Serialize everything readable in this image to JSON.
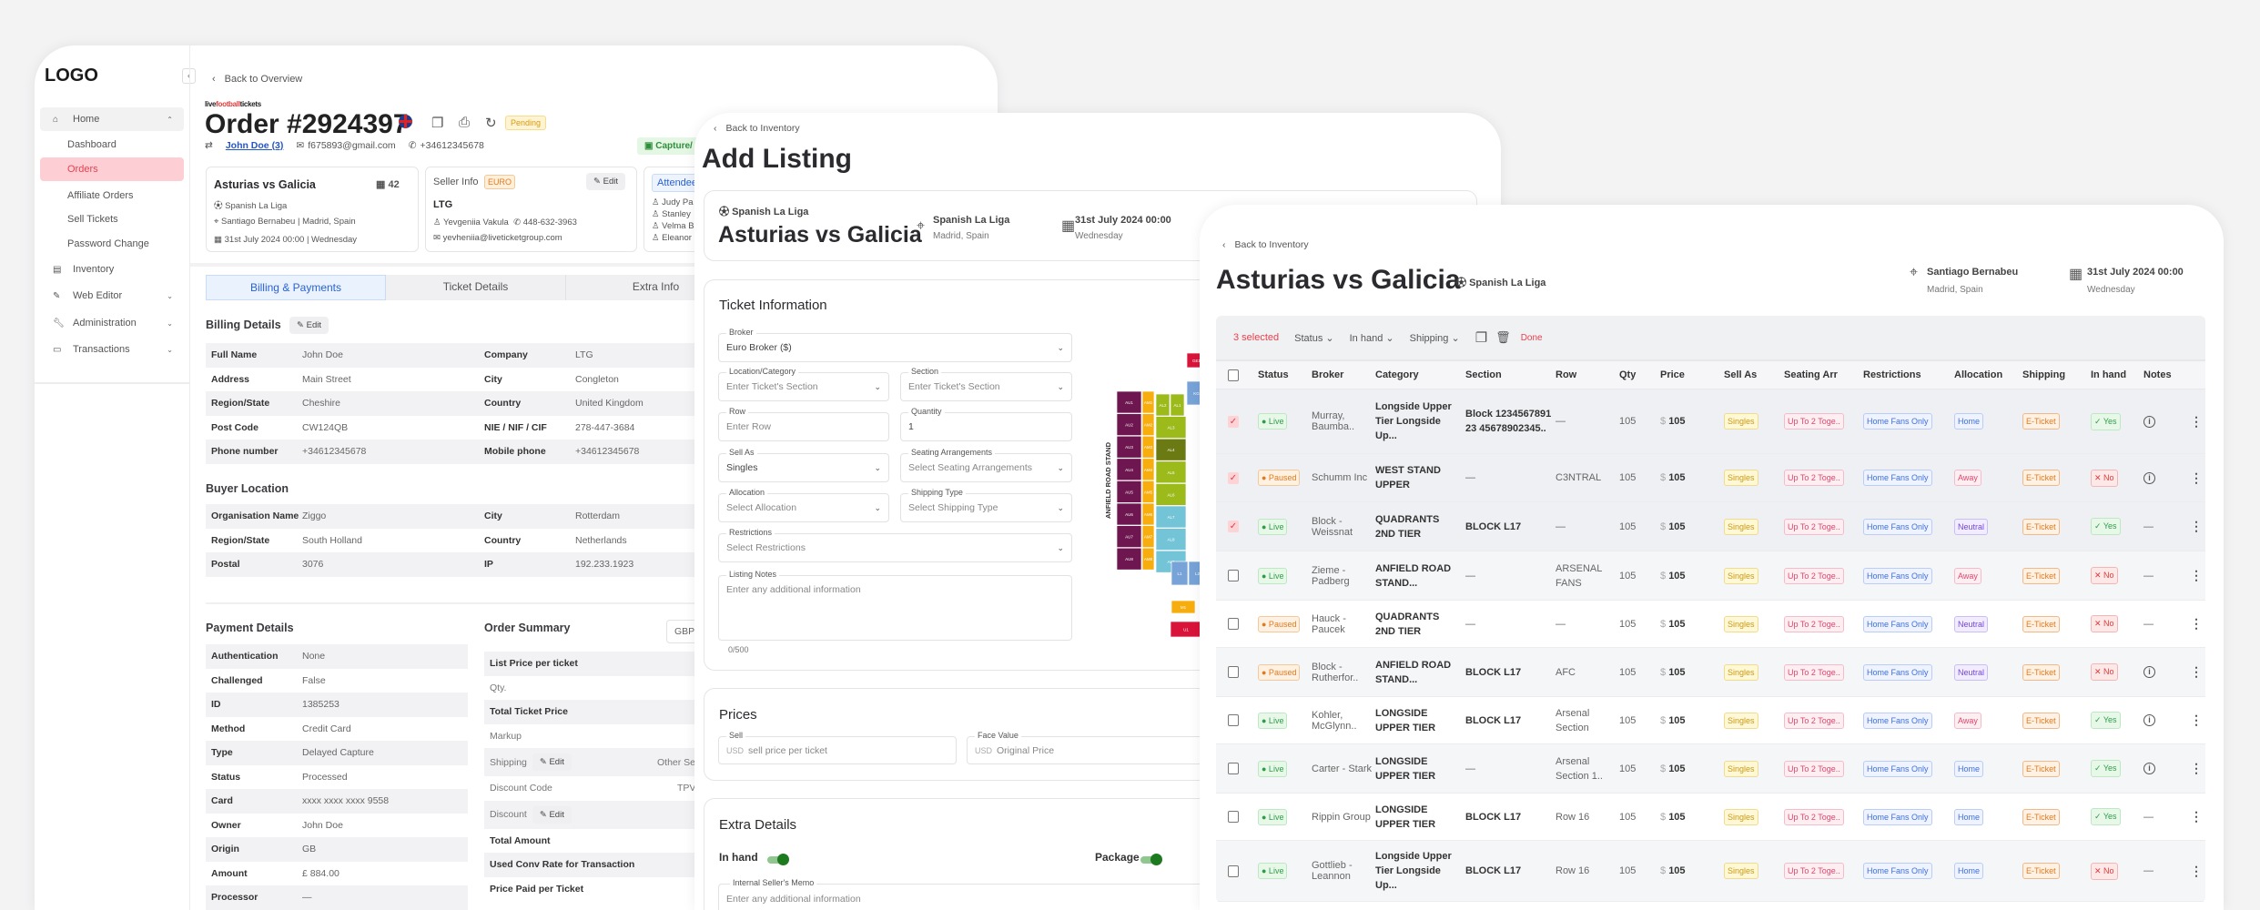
{
  "order_panel": {
    "logo": "LOGO",
    "sidebar": {
      "items": [
        {
          "label": "Home",
          "icon": "home-icon"
        },
        {
          "label": "Dashboard"
        },
        {
          "label": "Orders"
        },
        {
          "label": "Affiliate Orders"
        },
        {
          "label": "Sell Tickets"
        },
        {
          "label": "Password Change"
        },
        {
          "label": "Inventory",
          "icon": "ticket-icon"
        },
        {
          "label": "Web Editor",
          "icon": "pencil-icon"
        },
        {
          "label": "Administration",
          "icon": "wrench-icon"
        },
        {
          "label": "Transactions",
          "icon": "card-icon"
        }
      ]
    },
    "back_label": "Back to Overview",
    "brand": "livefootballtickets",
    "title": "Order #2924397",
    "status_badge": "Pending",
    "customer": "John Doe (3)",
    "email": "f675893@gmail.com",
    "phone": "+34612345678",
    "capture_label": "Capture/",
    "event_card": {
      "title": "Asturias vs Galicia",
      "count": "42",
      "league": "Spanish La Liga",
      "venue": "Santiago Bernabeu | Madrid, Spain",
      "date": "31st July 2024 00:00 | Wednesday"
    },
    "seller_card": {
      "title": "Seller Info",
      "currency": "EURO",
      "edit": "Edit",
      "company": "LTG",
      "contact": "Yevgeniia Vakula",
      "phone": "448-632-3963",
      "email": "yevheniia@liveticketgroup.com"
    },
    "attendees_card": {
      "title": "Attendee",
      "names": [
        "Judy Pa",
        "Stanley",
        "Velma B",
        "Eleanor"
      ]
    },
    "tabs": [
      "Billing & Payments",
      "Ticket Details",
      "Extra Info"
    ],
    "billing": {
      "title": "Billing Details",
      "edit": "Edit",
      "rows": [
        [
          "Full Name",
          "John Doe",
          "Company",
          "LTG"
        ],
        [
          "Address",
          "Main Street",
          "City",
          "Congleton"
        ],
        [
          "Region/State",
          "Cheshire",
          "Country",
          "United Kingdom"
        ],
        [
          "Post Code",
          "CW124QB",
          "NIE / NIF / CIF",
          "278-447-3684"
        ],
        [
          "Phone number",
          "+34612345678",
          "Mobile phone",
          "+34612345678"
        ]
      ]
    },
    "buyer_location": {
      "title": "Buyer Location",
      "rows": [
        [
          "Organisation Name",
          "Ziggo",
          "City",
          "Rotterdam"
        ],
        [
          "Region/State",
          "South Holland",
          "Country",
          "Netherlands"
        ],
        [
          "Postal",
          "3076",
          "IP",
          "192.233.1923"
        ]
      ]
    },
    "payment": {
      "title": "Payment Details",
      "rows": [
        [
          "Authentication",
          "None"
        ],
        [
          "Challenged",
          "False"
        ],
        [
          "ID",
          "1385253"
        ],
        [
          "Method",
          "Credit Card"
        ],
        [
          "Type",
          "Delayed Capture"
        ],
        [
          "Status",
          "Processed"
        ],
        [
          "Card",
          "xxxx xxxx xxxx 9558"
        ],
        [
          "Owner",
          "John Doe"
        ],
        [
          "Origin",
          "GB"
        ],
        [
          "Amount",
          "£ 884.00"
        ],
        [
          "Processor",
          "—"
        ]
      ]
    },
    "summary": {
      "title": "Order Summary",
      "currency": "GBP",
      "rows": [
        {
          "label": "List Price per ticket",
          "bold": true
        },
        {
          "label": "Qty."
        },
        {
          "label": "Total Ticket Price",
          "bold": true
        },
        {
          "label": "Markup"
        },
        {
          "label": "Shipping",
          "edit": "Edit",
          "value": "Other Secure Deliver"
        },
        {
          "label": "Discount Code",
          "value": "TPV"
        },
        {
          "label": "Discount",
          "edit": "Edit"
        },
        {
          "label": "Total Amount",
          "bold": true
        },
        {
          "label": "Used Conv Rate for Transaction",
          "bold": true
        },
        {
          "label": "Price Paid per Ticket",
          "bold": true
        }
      ]
    }
  },
  "add_listing": {
    "back_label": "Back to Inventory",
    "title": "Add Listing",
    "event": {
      "league": "Spanish La Liga",
      "title": "Asturias vs Galicia",
      "venue": "Spanish La Liga",
      "city": "Madrid, Spain",
      "date": "31st July 2024 00:00",
      "weekday": "Wednesday"
    },
    "ticket_info": {
      "title": "Ticket Information",
      "broker": {
        "label": "Broker",
        "value": "Euro Broker ($)"
      },
      "location": {
        "label": "Location/Category",
        "placeholder": "Enter Ticket's Section"
      },
      "section": {
        "label": "Section",
        "placeholder": "Enter Ticket's Section"
      },
      "row": {
        "label": "Row",
        "placeholder": "Enter Row"
      },
      "quantity": {
        "label": "Quantity",
        "value": "1"
      },
      "sell_as": {
        "label": "Sell As",
        "value": "Singles"
      },
      "seating": {
        "label": "Seating Arrangements",
        "placeholder": "Select Seating Arrangements"
      },
      "allocation": {
        "label": "Allocation",
        "placeholder": "Select Allocation"
      },
      "shipping": {
        "label": "Shipping Type",
        "placeholder": "Select Shipping Type"
      },
      "restrictions": {
        "label": "Restrictions",
        "placeholder": "Select Restrictions"
      },
      "notes": {
        "label": "Listing Notes",
        "placeholder": "Enter any additional information",
        "counter": "0/500"
      }
    },
    "map": {
      "stand_label": "ANFIELD ROAD STAND",
      "blocks": [
        {
          "label": "AU1",
          "color": "#6e1650"
        },
        {
          "label": "AU2",
          "color": "#6e1650"
        },
        {
          "label": "AU3",
          "color": "#6e1650"
        },
        {
          "label": "AU4",
          "color": "#6e1650"
        },
        {
          "label": "AU5",
          "color": "#6e1650"
        },
        {
          "label": "AU6",
          "color": "#6e1650"
        },
        {
          "label": "AU7",
          "color": "#6e1650"
        },
        {
          "label": "AU8",
          "color": "#6e1650"
        },
        {
          "label": "AM1",
          "color": "#f8ad0f"
        },
        {
          "label": "AM2",
          "color": "#f8ad0f"
        },
        {
          "label": "AM3",
          "color": "#f8ad0f"
        },
        {
          "label": "AM4",
          "color": "#f8ad0f"
        },
        {
          "label": "AM5",
          "color": "#f8ad0f"
        },
        {
          "label": "AM6",
          "color": "#f8ad0f"
        },
        {
          "label": "AM7",
          "color": "#f8ad0f"
        },
        {
          "label": "AM8",
          "color": "#f8ad0f"
        },
        {
          "label": "AL2",
          "color": "#9cba1a"
        },
        {
          "label": "AL1",
          "color": "#9cba1a"
        },
        {
          "label": "AL3",
          "color": "#9cba1a"
        },
        {
          "label": "AL4",
          "color": "#6b7a13"
        },
        {
          "label": "AL5",
          "color": "#9cba1a"
        },
        {
          "label": "AL6",
          "color": "#9cba1a"
        },
        {
          "label": "AL7",
          "color": "#72c4d6"
        },
        {
          "label": "AL8",
          "color": "#72c4d6"
        },
        {
          "label": "AL9",
          "color": "#72c4d6"
        },
        {
          "label": "GE1",
          "color": "#d9143a"
        },
        {
          "label": "KG",
          "color": "#77a3d8"
        },
        {
          "label": "L1",
          "color": "#77a3d8"
        },
        {
          "label": "L2",
          "color": "#77a3d8"
        },
        {
          "label": "M1",
          "color": "#f8ad0f"
        },
        {
          "label": "U1",
          "color": "#d9143a"
        }
      ]
    },
    "prices": {
      "title": "Prices",
      "sell": {
        "label": "Sell",
        "currency": "USD",
        "placeholder": "sell price per ticket"
      },
      "face": {
        "label": "Face Value",
        "currency": "USD",
        "placeholder": "Original Price"
      }
    },
    "extra": {
      "title": "Extra Details",
      "in_hand": {
        "label": "In hand",
        "on": true
      },
      "package": {
        "label": "Package",
        "on": true
      },
      "memo": {
        "label": "Internal Seller's Memo",
        "placeholder": "Enter any additional information"
      }
    }
  },
  "inventory": {
    "back_label": "Back to Inventory",
    "title": "Asturias vs Galicia",
    "league": "Spanish La Liga",
    "venue": "Santiago Bernabeu",
    "city": "Madrid, Spain",
    "date": "31st July 2024 00:00",
    "weekday": "Wednesday",
    "toolbar": {
      "selected": "3 selected",
      "status": "Status",
      "in_hand": "In hand",
      "shipping": "Shipping",
      "done": "Done"
    },
    "columns": [
      "Status",
      "Broker",
      "Category",
      "Section",
      "Row",
      "Qty",
      "Price",
      "Sell As",
      "Seating Arr",
      "Restrictions",
      "Allocation",
      "Shipping",
      "In hand",
      "Notes"
    ],
    "currency_symbol": "$",
    "rows": [
      {
        "checked": true,
        "status": "Live",
        "broker": "Murray, Baumba..",
        "category": "Longside Upper Tier Longside Up...",
        "section": "Block 123456789123 45678902345..",
        "row": "—",
        "qty": "105",
        "price": "105",
        "sell_as": "Singles",
        "seating": "Up To 2 Toge..",
        "restrictions": "Home Fans Only",
        "allocation": "Home",
        "shipping": "E-Ticket",
        "in_hand": "Yes",
        "notes": "info"
      },
      {
        "checked": true,
        "status": "Paused",
        "broker": "Schumm Inc",
        "category": "WEST STAND UPPER",
        "section": "—",
        "row": "C3NTRAL",
        "qty": "105",
        "price": "105",
        "sell_as": "Singles",
        "seating": "Up To 2 Toge..",
        "restrictions": "Home Fans Only",
        "allocation": "Away",
        "shipping": "E-Ticket",
        "in_hand": "No",
        "notes": "info"
      },
      {
        "checked": true,
        "status": "Live",
        "broker": "Block - Weissnat",
        "category": "QUADRANTS 2ND TIER",
        "section": "BLOCK L17",
        "row": "—",
        "qty": "105",
        "price": "105",
        "sell_as": "Singles",
        "seating": "Up To 2 Toge..",
        "restrictions": "Home Fans Only",
        "allocation": "Neutral",
        "shipping": "E-Ticket",
        "in_hand": "Yes",
        "notes": "—"
      },
      {
        "checked": false,
        "status": "Live",
        "broker": "Zieme - Padberg",
        "category": "ANFIELD ROAD STAND...",
        "section": "—",
        "row": "ARSENAL FANS",
        "qty": "105",
        "price": "105",
        "sell_as": "Singles",
        "seating": "Up To 2 Toge..",
        "restrictions": "Home Fans Only",
        "allocation": "Away",
        "shipping": "E-Ticket",
        "in_hand": "No",
        "notes": "—"
      },
      {
        "checked": false,
        "status": "Paused",
        "broker": "Hauck - Paucek",
        "category": "QUADRANTS 2ND TIER",
        "section": "—",
        "row": "—",
        "qty": "105",
        "price": "105",
        "sell_as": "Singles",
        "seating": "Up To 2 Toge..",
        "restrictions": "Home Fans Only",
        "allocation": "Neutral",
        "shipping": "E-Ticket",
        "in_hand": "No",
        "notes": "—"
      },
      {
        "checked": false,
        "status": "Paused",
        "broker": "Block - Rutherfor..",
        "category": "ANFIELD ROAD STAND...",
        "section": "BLOCK L17",
        "row": "AFC",
        "qty": "105",
        "price": "105",
        "sell_as": "Singles",
        "seating": "Up To 2 Toge..",
        "restrictions": "Home Fans Only",
        "allocation": "Neutral",
        "shipping": "E-Ticket",
        "in_hand": "No",
        "notes": "info"
      },
      {
        "checked": false,
        "status": "Live",
        "broker": "Kohler, McGlynn..",
        "category": "LONGSIDE UPPER TIER",
        "section": "BLOCK L17",
        "row": "Arsenal Section",
        "qty": "105",
        "price": "105",
        "sell_as": "Singles",
        "seating": "Up To 2 Toge..",
        "restrictions": "Home Fans Only",
        "allocation": "Away",
        "shipping": "E-Ticket",
        "in_hand": "Yes",
        "notes": "info"
      },
      {
        "checked": false,
        "status": "Live",
        "broker": "Carter - Stark",
        "category": "LONGSIDE UPPER TIER",
        "section": "—",
        "row": "Arsenal Section 1..",
        "qty": "105",
        "price": "105",
        "sell_as": "Singles",
        "seating": "Up To 2 Toge..",
        "restrictions": "Home Fans Only",
        "allocation": "Home",
        "shipping": "E-Ticket",
        "in_hand": "Yes",
        "notes": "info"
      },
      {
        "checked": false,
        "status": "Live",
        "broker": "Rippin Group",
        "category": "LONGSIDE UPPER TIER",
        "section": "BLOCK L17",
        "row": "Row 16",
        "qty": "105",
        "price": "105",
        "sell_as": "Singles",
        "seating": "Up To 2 Toge..",
        "restrictions": "Home Fans Only",
        "allocation": "Home",
        "shipping": "E-Ticket",
        "in_hand": "Yes",
        "notes": "—"
      },
      {
        "checked": false,
        "status": "Live",
        "broker": "Gottlieb - Leannon",
        "category": "Longside Upper Tier Longside Up...",
        "section": "BLOCK L17",
        "row": "Row 16",
        "qty": "105",
        "price": "105",
        "sell_as": "Singles",
        "seating": "Up To 2 Toge..",
        "restrictions": "Home Fans Only",
        "allocation": "Home",
        "shipping": "E-Ticket",
        "in_hand": "No",
        "notes": "—"
      }
    ]
  }
}
